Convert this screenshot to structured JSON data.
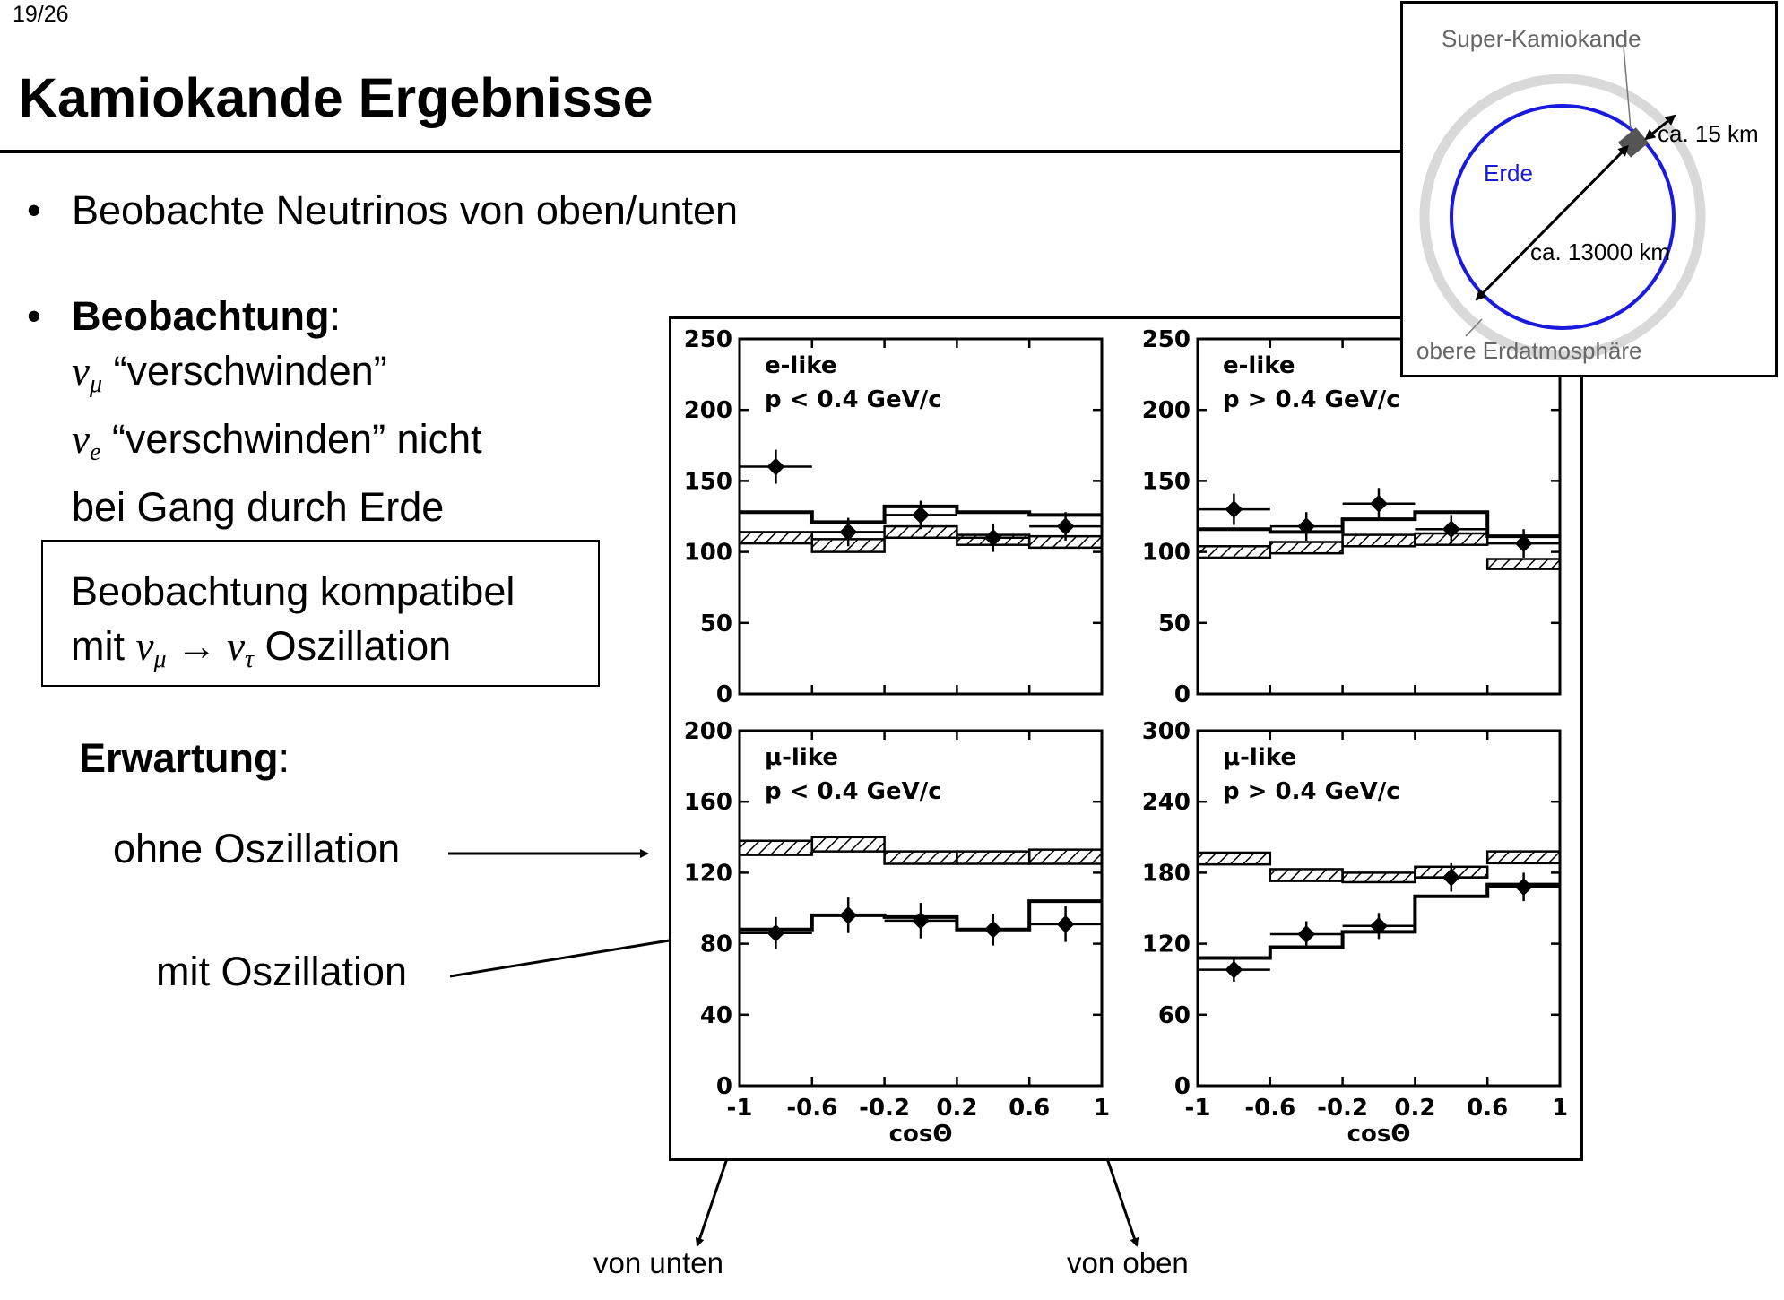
{
  "page_number": "19/26",
  "title": "Kamiokande Ergebnisse",
  "bullets": {
    "b1": "Beobachte Neutrinos von oben/unten",
    "b2_bold": "Beobachtung",
    "b2_colon": ":",
    "line_numu_sym": "ν",
    "line_numu_sub": "μ",
    "line_numu_text": "“verschwinden”",
    "line_nue_sym": "ν",
    "line_nue_sub": "e",
    "line_nue_text": "“verschwinden” nicht",
    "line_erde": "bei Gang durch Erde"
  },
  "box": {
    "line1": "Beobachtung kompatibel",
    "line2_pre": "mit",
    "math_nu1": "ν",
    "math_sub1": "μ",
    "arrow": "→",
    "math_nu2": "ν",
    "math_sub2": "τ",
    "line2_post": "Oszillation"
  },
  "expectation": {
    "heading": "Erwartung",
    "colon": ":",
    "ohne": "ohne Oszillation",
    "mit": "mit Oszillation"
  },
  "directions": {
    "from_below": "von unten",
    "from_above": "von oben"
  },
  "inset": {
    "detector": "Super-Kamiokande",
    "earth": "Erde",
    "dist_short": "ca. 15 km",
    "dist_long": "ca. 13000 km",
    "atmosphere": "obere Erdatmosphäre",
    "earth_color": "#1a1adc",
    "atmos_color": "#d9d9d9"
  },
  "chart_data": [
    {
      "type": "histogram",
      "label": "e-like",
      "cut": "p < 0.4 GeV/c",
      "xlabel": "",
      "xlim": [
        -1,
        1
      ],
      "ylim": [
        0,
        250
      ],
      "yticks": [
        0,
        50,
        100,
        150,
        200,
        250
      ],
      "xticks": [],
      "bin_edges": [
        -1,
        -0.6,
        -0.2,
        0.2,
        0.6,
        1
      ],
      "no_osc_band": [
        [
          106,
          114
        ],
        [
          100,
          109
        ],
        [
          110,
          118
        ],
        [
          105,
          112
        ],
        [
          103,
          111
        ]
      ],
      "osc_line": [
        128,
        121,
        132,
        128,
        126
      ],
      "data_points": [
        {
          "x": -0.8,
          "y": 160,
          "xerr": 0.2,
          "yerr": 12
        },
        {
          "x": -0.4,
          "y": 114,
          "xerr": 0.2,
          "yerr": 10
        },
        {
          "x": 0.0,
          "y": 126,
          "xerr": 0.2,
          "yerr": 10
        },
        {
          "x": 0.4,
          "y": 110,
          "xerr": 0.2,
          "yerr": 10
        },
        {
          "x": 0.8,
          "y": 118,
          "xerr": 0.2,
          "yerr": 10
        }
      ]
    },
    {
      "type": "histogram",
      "label": "e-like",
      "cut": "p > 0.4 GeV/c",
      "xlabel": "",
      "xlim": [
        -1,
        1
      ],
      "ylim": [
        0,
        250
      ],
      "yticks": [
        0,
        50,
        100,
        150,
        200,
        250
      ],
      "xticks": [],
      "bin_edges": [
        -1,
        -0.6,
        -0.2,
        0.2,
        0.6,
        1
      ],
      "no_osc_band": [
        [
          96,
          104
        ],
        [
          99,
          107
        ],
        [
          104,
          112
        ],
        [
          105,
          113
        ],
        [
          88,
          95
        ]
      ],
      "osc_line": [
        116,
        114,
        123,
        128,
        111
      ],
      "data_points": [
        {
          "x": -0.8,
          "y": 130,
          "xerr": 0.2,
          "yerr": 11
        },
        {
          "x": -0.4,
          "y": 118,
          "xerr": 0.2,
          "yerr": 10
        },
        {
          "x": 0.0,
          "y": 134,
          "xerr": 0.2,
          "yerr": 11
        },
        {
          "x": 0.4,
          "y": 116,
          "xerr": 0.2,
          "yerr": 10
        },
        {
          "x": 0.8,
          "y": 106,
          "xerr": 0.2,
          "yerr": 10
        }
      ]
    },
    {
      "type": "histogram",
      "label": "μ-like",
      "cut": "p < 0.4 GeV/c",
      "xlabel": "cosΘ",
      "xlim": [
        -1,
        1
      ],
      "ylim": [
        0,
        200
      ],
      "yticks": [
        0,
        40,
        80,
        120,
        160,
        200
      ],
      "xticks": [
        "-1",
        "-0.6",
        "-0.2",
        "0.2",
        "0.6",
        "1"
      ],
      "bin_edges": [
        -1,
        -0.6,
        -0.2,
        0.2,
        0.6,
        1
      ],
      "no_osc_band": [
        [
          130,
          138
        ],
        [
          132,
          140
        ],
        [
          125,
          132
        ],
        [
          125,
          132
        ],
        [
          125,
          133
        ]
      ],
      "osc_line": [
        88,
        96,
        95,
        88,
        104
      ],
      "data_points": [
        {
          "x": -0.8,
          "y": 86,
          "xerr": 0.2,
          "yerr": 9
        },
        {
          "x": -0.4,
          "y": 96,
          "xerr": 0.2,
          "yerr": 10
        },
        {
          "x": 0.0,
          "y": 93,
          "xerr": 0.2,
          "yerr": 10
        },
        {
          "x": 0.4,
          "y": 88,
          "xerr": 0.2,
          "yerr": 9
        },
        {
          "x": 0.8,
          "y": 91,
          "xerr": 0.2,
          "yerr": 10
        }
      ]
    },
    {
      "type": "histogram",
      "label": "μ-like",
      "cut": "p > 0.4 GeV/c",
      "xlabel": "cosΘ",
      "xlim": [
        -1,
        1
      ],
      "ylim": [
        0,
        300
      ],
      "yticks": [
        0,
        60,
        120,
        180,
        240,
        300
      ],
      "xticks": [
        "-1",
        "-0.6",
        "-0.2",
        "0.2",
        "0.6",
        "1"
      ],
      "bin_edges": [
        -1,
        -0.6,
        -0.2,
        0.2,
        0.6,
        1
      ],
      "no_osc_band": [
        [
          187,
          197
        ],
        [
          173,
          183
        ],
        [
          172,
          180
        ],
        [
          176,
          185
        ],
        [
          188,
          198
        ]
      ],
      "osc_line": [
        108,
        117,
        130,
        160,
        170
      ],
      "data_points": [
        {
          "x": -0.8,
          "y": 98,
          "xerr": 0.2,
          "yerr": 10
        },
        {
          "x": -0.4,
          "y": 128,
          "xerr": 0.2,
          "yerr": 11
        },
        {
          "x": 0.0,
          "y": 135,
          "xerr": 0.2,
          "yerr": 11
        },
        {
          "x": 0.4,
          "y": 176,
          "xerr": 0.2,
          "yerr": 12
        },
        {
          "x": 0.8,
          "y": 168,
          "xerr": 0.2,
          "yerr": 12
        }
      ]
    }
  ]
}
